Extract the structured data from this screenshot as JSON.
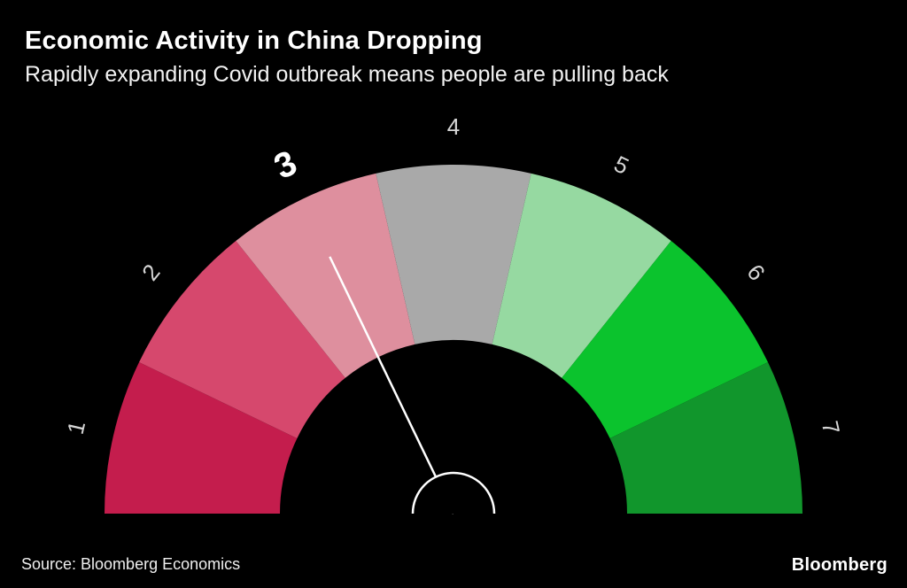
{
  "header": {
    "title": "Economic Activity in China Dropping",
    "subtitle": "Rapidly expanding Covid outbreak means people are pulling back"
  },
  "footer": {
    "source": "Source: Bloomberg Economics",
    "logo": "Bloomberg"
  },
  "chart_data": {
    "type": "gauge",
    "title": "Economic Activity in China Dropping",
    "subtitle": "Rapidly expanding Covid outbreak means people are pulling back",
    "scale_min": 1,
    "scale_max": 7,
    "value": 3,
    "highlighted_tick": "3",
    "tick_labels": [
      "1",
      "2",
      "3",
      "4",
      "5",
      "6",
      "7"
    ],
    "segments": [
      {
        "tick": "1",
        "color": "#c41d4d"
      },
      {
        "tick": "2",
        "color": "#d6486d"
      },
      {
        "tick": "3",
        "color": "#de8f9e"
      },
      {
        "tick": "4",
        "color": "#a9a9a9"
      },
      {
        "tick": "5",
        "color": "#96d9a1"
      },
      {
        "tick": "6",
        "color": "#0bc32d"
      },
      {
        "tick": "7",
        "color": "#11962c"
      }
    ],
    "needle_color": "#ffffff",
    "tick_label_color": "#d6d6d6",
    "highlighted_tick_color": "#ffffff",
    "background": "#000000",
    "legend": "none",
    "orientation": "semicircle-180"
  }
}
